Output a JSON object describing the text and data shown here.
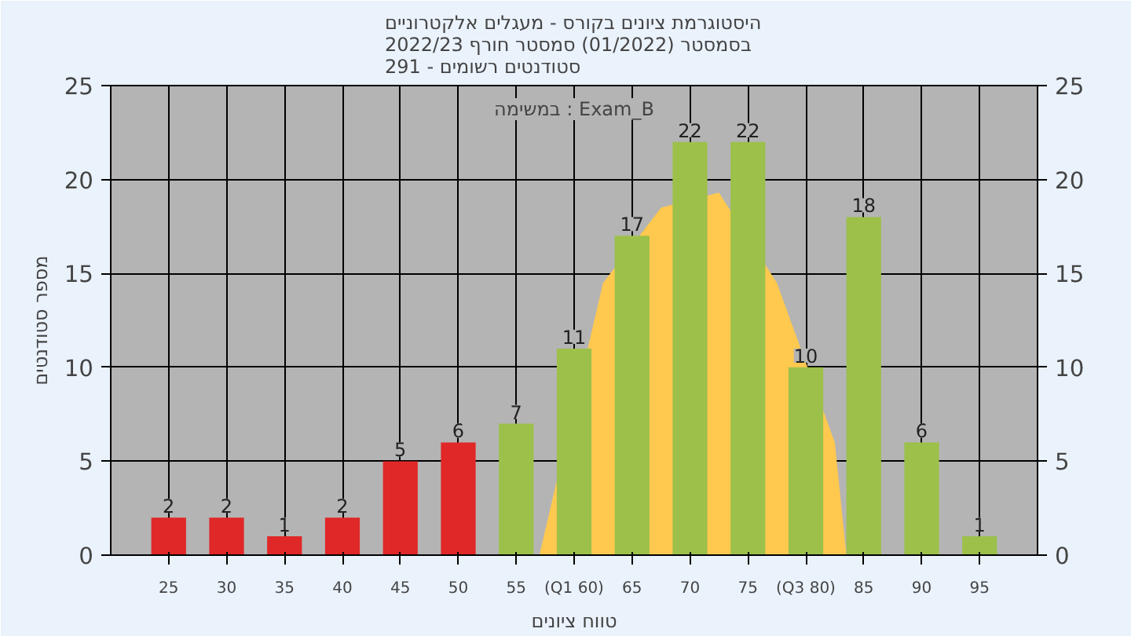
{
  "chart_data": {
    "type": "bar",
    "title": "היסטוגרמת ציונים בקורס - מעגלים אלקטרוניים\nבסמסטר  (01/2022)  סמסטר חורף 2022/23\nסטודנטים רשומים - 291",
    "xlabel": "טווח ציונים",
    "ylabel": "מספר סטודנטים",
    "annotations": [
      "במשימה : Exam_B"
    ],
    "x": [
      25,
      30,
      35,
      40,
      45,
      50,
      55,
      60,
      65,
      70,
      75,
      80,
      85,
      90,
      95
    ],
    "series": [
      {
        "type": "area",
        "color": "#ffc84f",
        "x": [
          57,
          62.5,
          67.5,
          72.5,
          77.5,
          82.5,
          83.5
        ],
        "values": [
          0,
          14.5,
          18.5,
          19.3,
          14.5,
          6,
          0
        ]
      },
      {
        "colors": [
          "#e02828",
          "#e02828",
          "#e02828",
          "#e02828",
          "#e02828",
          "#e02828",
          "#9cc04a",
          "#9cc04a",
          "#9cc04a",
          "#9cc04a",
          "#9cc04a",
          "#9cc04a",
          "#9cc04a",
          "#9cc04a",
          "#9cc04a"
        ],
        "values": [
          2,
          2,
          1,
          2,
          5,
          6,
          7,
          11,
          17,
          22,
          22,
          10,
          18,
          6,
          1
        ],
        "value_labels": [
          "2",
          "2",
          "1",
          "2",
          "5",
          "6",
          "7",
          "11",
          "17",
          "22",
          "22",
          "10",
          "18",
          "6",
          "1"
        ]
      }
    ],
    "xlim": [
      20,
      100
    ],
    "xticks": [
      25,
      30,
      35,
      40,
      45,
      50,
      55,
      {
        "value": 60,
        "label": "(Q1 60)"
      },
      65,
      70,
      75,
      {
        "value": 80,
        "label": "(Q3 80)"
      },
      85,
      90,
      95
    ],
    "ylim": [
      0,
      25
    ],
    "yticks": [
      0,
      5,
      10,
      15,
      20,
      25
    ],
    "y2lim": [
      0,
      25
    ],
    "y2ticks": [
      0,
      5,
      10,
      15,
      20,
      25
    ],
    "grid": true
  }
}
